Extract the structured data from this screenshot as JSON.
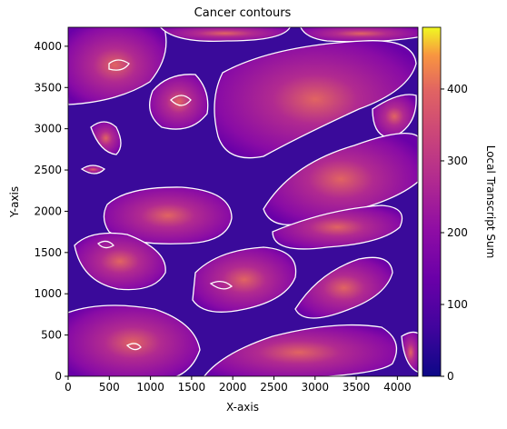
{
  "chart_data": {
    "type": "heatmap",
    "title": "Cancer contours",
    "x_label": "X-axis",
    "y_label": "Y-axis",
    "xlim": [
      0,
      4250
    ],
    "ylim": [
      0,
      4230
    ],
    "xticks": [
      0,
      500,
      1000,
      1500,
      2000,
      2500,
      3000,
      3500,
      4000
    ],
    "yticks": [
      0,
      500,
      1000,
      1500,
      2000,
      2500,
      3000,
      3500,
      4000
    ],
    "colorbar": {
      "label": "Local Transcript Sum",
      "lim": [
        0,
        486
      ],
      "ticks": [
        0,
        100,
        200,
        300,
        400
      ]
    }
  }
}
